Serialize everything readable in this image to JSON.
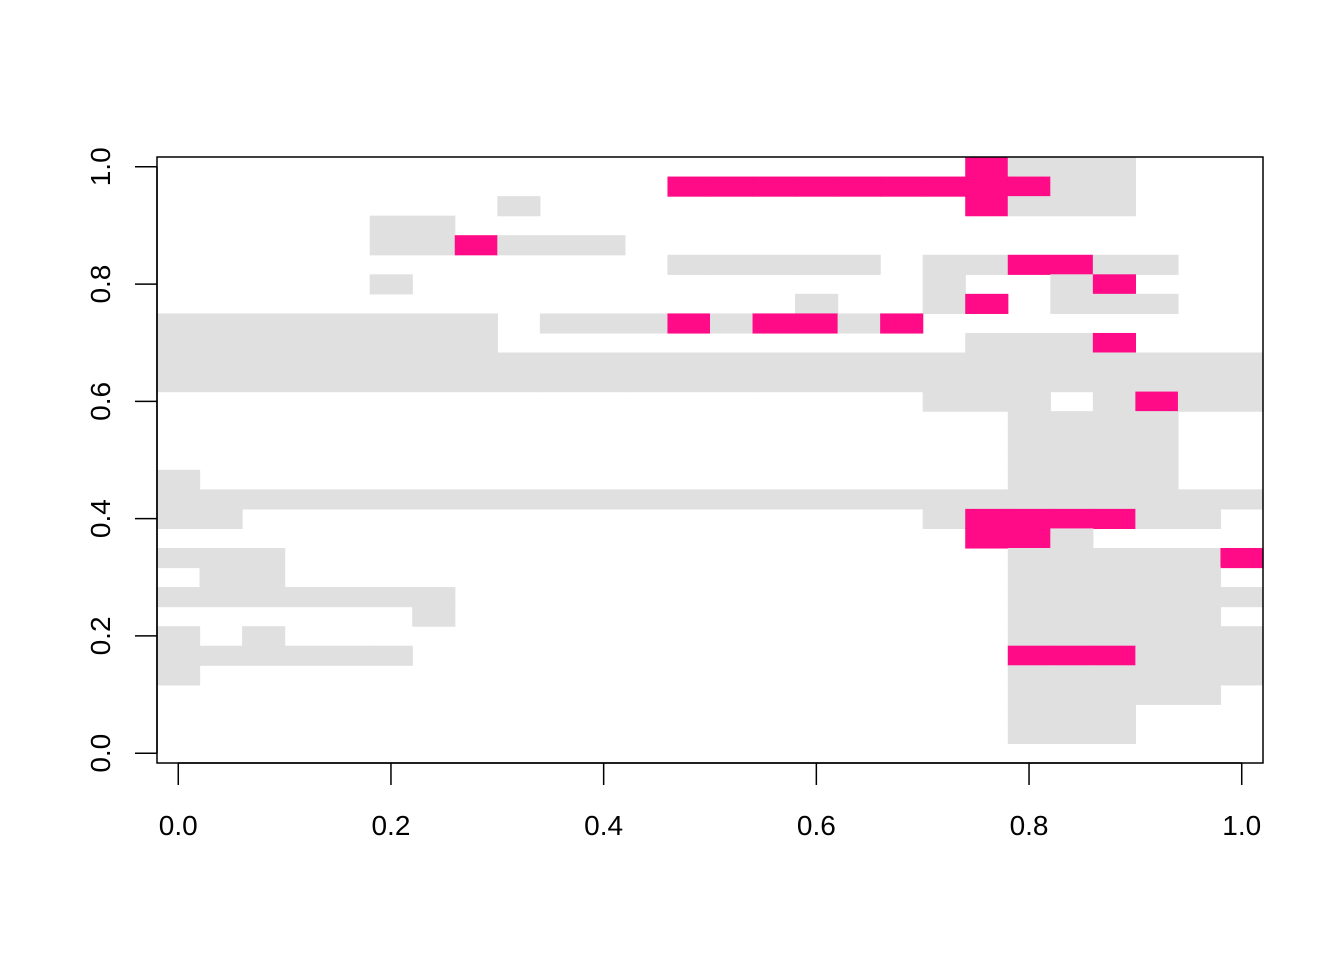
{
  "chart_data": {
    "type": "heatmap",
    "title": "",
    "xlabel": "",
    "ylabel": "",
    "xlim": [
      -0.02,
      1.02
    ],
    "ylim": [
      -0.0167,
      1.0167
    ],
    "x_ticks": [
      0.0,
      0.2,
      0.4,
      0.6,
      0.8,
      1.0
    ],
    "x_tick_labels": [
      "0.0",
      "0.2",
      "0.4",
      "0.6",
      "0.8",
      "1.0"
    ],
    "y_ticks": [
      0.0,
      0.2,
      0.4,
      0.6,
      0.8,
      1.0
    ],
    "y_tick_labels": [
      "0.0",
      "0.2",
      "0.4",
      "0.6",
      "0.8",
      "1.0"
    ],
    "colors": {
      "0": "#FFFFFF",
      "1": "#E0E0E0",
      "2": "#FF0A87"
    },
    "value_legend": {
      "0": "empty",
      "1": "grey",
      "2": "pink"
    },
    "x_centers": [
      0.0,
      0.04,
      0.08,
      0.12,
      0.16,
      0.2,
      0.24,
      0.28,
      0.32,
      0.36,
      0.4,
      0.44,
      0.48,
      0.52,
      0.56,
      0.6,
      0.64,
      0.68,
      0.72,
      0.76,
      0.8,
      0.84,
      0.88,
      0.92,
      0.96,
      1.0
    ],
    "y_centers": [
      0.0,
      0.0333,
      0.0667,
      0.1,
      0.1333,
      0.1667,
      0.2,
      0.2333,
      0.2667,
      0.3,
      0.3333,
      0.3667,
      0.4,
      0.4333,
      0.4667,
      0.5,
      0.5333,
      0.5667,
      0.6,
      0.6333,
      0.6667,
      0.7,
      0.7333,
      0.7667,
      0.8,
      0.8333,
      0.8667,
      0.9,
      0.9333,
      0.9667,
      1.0
    ],
    "grid_rows_top_to_bottom": [
      "00000000000000000002111000",
      "00000000000022222222211000",
      "00000000100000000002111000",
      "00000110000000000000000000",
      "00000112111000000000000000",
      "00000000000011111011221100",
      "00000100000000000010012000",
      "00000000000000010012011100",
      "11111111011121221200000000",
      "11111111000000000001112000",
      "11111111111111111111111111",
      "11111111111111111111111111",
      "00000000000000000011101211",
      "00000000000000000000111100",
      "00000000000000000000111100",
      "00000000000000000000111100",
      "10000000000000000000111100",
      "11111111111111111111111111",
      "11000000000000000012222110",
      "00000000000000000002210000",
      "11100000000000000000111112",
      "01100000000000000000111110",
      "11111110000000000000111111",
      "00000010000000000000111110",
      "10100000000000000000111111",
      "11111100000000000000222111",
      "10000000000000000000111111",
      "00000000000000000000111110",
      "00000000000000000000111000",
      "00000000000000000000111000",
      "00000000000000000000000000"
    ]
  }
}
